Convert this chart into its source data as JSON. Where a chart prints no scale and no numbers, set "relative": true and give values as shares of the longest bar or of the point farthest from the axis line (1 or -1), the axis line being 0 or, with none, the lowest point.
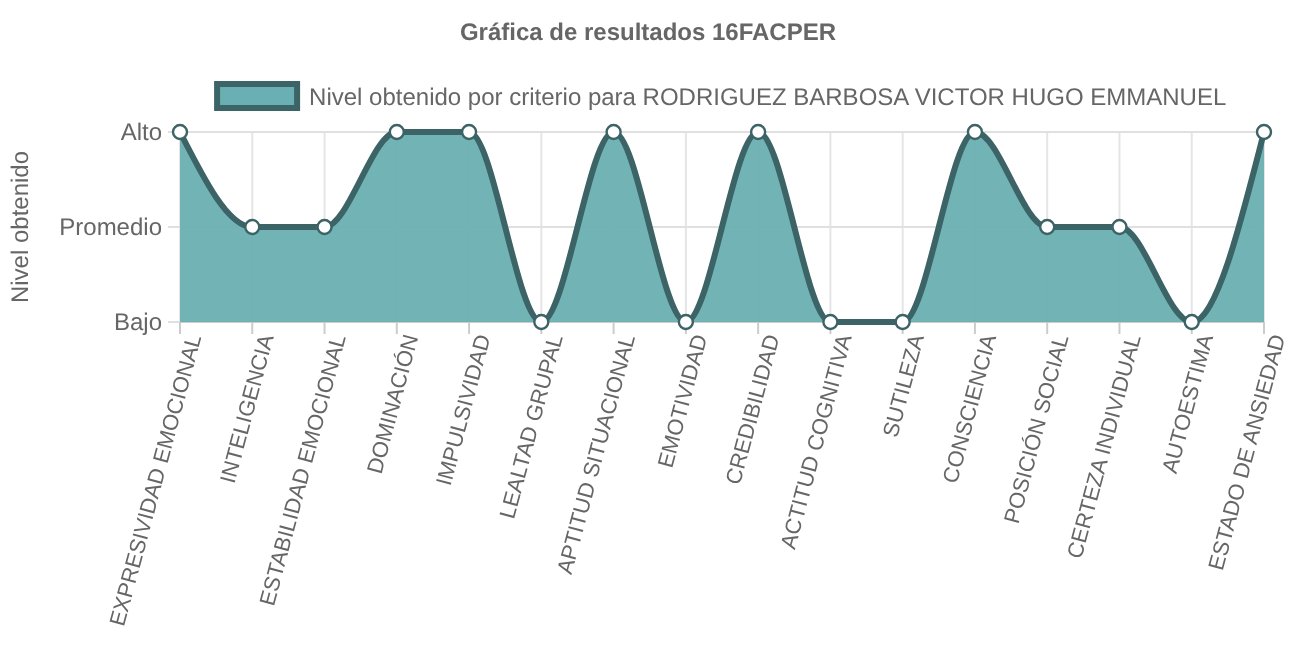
{
  "chart_data": {
    "type": "area",
    "title": "Gráfica de resultados 16FACPER",
    "ylabel": "Nivel obtenido",
    "categories": [
      "EXPRESIVIDAD EMOCIONAL",
      "INTELIGENCIA",
      "ESTABILIDAD EMOCIONAL",
      "DOMINACIÓN",
      "IMPULSIVIDAD",
      "LEALTAD GRUPAL",
      "APTITUD SITUACIONAL",
      "EMOTIVIDAD",
      "CREDIBILIDAD",
      "ACTITUD COGNITIVA",
      "SUTILEZA",
      "CONSCIENCIA",
      "POSICIÓN SOCIAL",
      "CERTEZA INDIVIDUAL",
      "AUTOESTIMA",
      "ESTADO DE ANSIEDAD"
    ],
    "series": [
      {
        "name": "Nivel obtenido por criterio para RODRIGUEZ BARBOSA VICTOR HUGO EMMANUEL",
        "color": "#6ab0b2",
        "values": [
          1,
          0.5,
          0.5,
          1,
          1,
          0,
          1,
          0,
          1,
          0,
          0,
          1,
          0.5,
          0.5,
          0,
          1
        ]
      }
    ],
    "relative": true,
    "ref_lines": [
      {
        "axis": "y",
        "value": 0,
        "label": "Bajo"
      },
      {
        "axis": "y",
        "value": 0.5,
        "label": "Promedio"
      },
      {
        "axis": "y",
        "value": 1,
        "label": "Alto"
      }
    ],
    "grid": "x",
    "legend": "top",
    "marker": "circle"
  }
}
